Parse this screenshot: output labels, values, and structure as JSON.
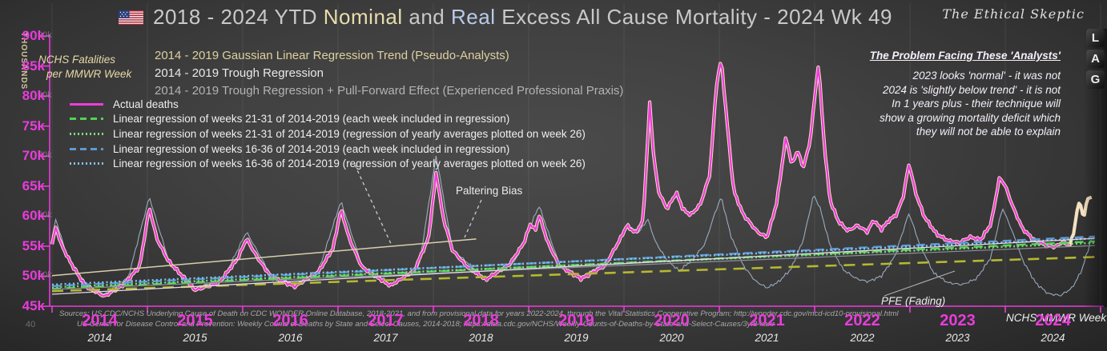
{
  "header": {
    "title_prefix": "2018 - 2024 YTD",
    "title_nominal": "Nominal",
    "title_and": "and",
    "title_real": "Real",
    "title_suffix": "Excess All Cause Mortality - 2024 Wk 49",
    "watermark": "The Ethical Skeptic"
  },
  "axis_left": {
    "unit_label": "THOUSANDS",
    "caption_line1": "NCHS Fatalities",
    "caption_line2": "per MMWR Week",
    "tick_labels": [
      "90k",
      "85k",
      "80k",
      "75k",
      "70k",
      "65k",
      "60k",
      "55k",
      "50k",
      "45k"
    ],
    "tick_values": [
      90,
      85,
      80,
      75,
      70,
      65,
      60,
      55,
      50,
      45
    ],
    "ghost_labels": [
      "90k",
      "80k",
      "70k",
      "60k",
      "50k",
      "40"
    ],
    "ghost_values": [
      90,
      80,
      70,
      60,
      50,
      40
    ]
  },
  "axis_bottom": {
    "years_primary": [
      "2014",
      "2015",
      "2016",
      "2017",
      "2018",
      "2019",
      "2020",
      "2021",
      "2022",
      "2023",
      "2024"
    ],
    "years_secondary": [
      "2014",
      "2015",
      "2016",
      "2017",
      "2018",
      "2019",
      "2020",
      "2021",
      "2022",
      "2023",
      "2024"
    ],
    "axis_caption": "NCHS MMWR Week"
  },
  "legend_top": [
    {
      "label": "2014 - 2019 Gaussian Linear Regression Trend (Pseudo-Analysts)",
      "color": "#ddd0a0"
    },
    {
      "label": "2014 - 2019 Trough Regression",
      "color": "#e9e9e9"
    },
    {
      "label": "2014 - 2019 Trough Regression + Pull-Forward Effect (Experienced Professional Praxis)",
      "color": "#b3b3b3"
    }
  ],
  "legend_main": [
    {
      "label": "Actual deaths",
      "style": "solid",
      "color": "#ee3ddb",
      "width": 3
    },
    {
      "label": "Linear regression of weeks 21-31 of 2014-2019 (each week included in regression)",
      "style": "dashed",
      "color": "#52d452",
      "width": 3
    },
    {
      "label": "Linear regression of weeks 21-31 of 2014-2019 (regression of yearly averages plotted on week 26)",
      "style": "dotted",
      "color": "#7adf7a",
      "width": 3
    },
    {
      "label": "Linear regression of weeks 16-36 of 2014-2019 (each week included in regression)",
      "style": "dashed",
      "color": "#5b9bd5",
      "width": 3
    },
    {
      "label": "Linear regression of weeks 16-36 of 2014-2019 (regression of yearly averages plotted on week 26)",
      "style": "dotted",
      "color": "#85c0f0",
      "width": 3
    }
  ],
  "annotations": {
    "paltering": "Paltering Bias",
    "pfe": "PFE (Fading)",
    "lag_letters": [
      "L",
      "A",
      "G"
    ],
    "problem_title": "The Problem Facing These 'Analysts'",
    "problem_lines": [
      "2023  looks 'normal' - it was not",
      "2024  is 'slightly below trend' - it is not",
      "In 1 years plus - their technique will",
      "show a growing mortality deficit which",
      "they will not be able to explain"
    ]
  },
  "sources": {
    "line1": "Sources:  US CDC/NCHS Underlying Cause of Death on CDC WONDER Online Database, 2018-2021, and from provisional data for years 2022-2024, through the Vital Statistics Cooperative Program; http://wonder.cdc.gov/mcd-icd10-provisional.html",
    "line2": "US Center for Disease Control and Prevention: Weekly  Counts of Deaths by State and Select Causes, 2014-2018; https://data.cdc.gov/NCHS/Weekly-Counts-of-Deaths-by-State-and-Select-Causes/3yf8-kanr"
  },
  "chart_data": {
    "type": "line",
    "title": "2018 - 2024 YTD Nominal and Real Excess All Cause Mortality - 2024 Wk 49",
    "ylabel": "NCHS Fatalities per MMWR Week (thousands)",
    "xlabel": "NCHS MMWR Week",
    "x_domain": [
      2014.0,
      2024.94
    ],
    "ylim": [
      45,
      90
    ],
    "grid": "vertical-year-lines",
    "series": [
      {
        "name": "actual_deaths_nominal",
        "color": "#ee3ddb",
        "halo_color": "#f3e1c0",
        "magenta_ends_at": 2024.68,
        "anchors": [
          [
            2014.0,
            55.5
          ],
          [
            2014.04,
            58.3
          ],
          [
            2014.1,
            55.3
          ],
          [
            2014.2,
            52.3
          ],
          [
            2014.35,
            48.6
          ],
          [
            2014.55,
            46.8
          ],
          [
            2014.75,
            48.6
          ],
          [
            2014.92,
            51.5
          ],
          [
            2015.02,
            61.3
          ],
          [
            2015.1,
            56.0
          ],
          [
            2015.22,
            52.3
          ],
          [
            2015.5,
            47.6
          ],
          [
            2015.75,
            49.0
          ],
          [
            2015.95,
            53.2
          ],
          [
            2016.04,
            56.5
          ],
          [
            2016.15,
            53.4
          ],
          [
            2016.3,
            50.0
          ],
          [
            2016.55,
            48.2
          ],
          [
            2016.8,
            50.6
          ],
          [
            2016.95,
            54.5
          ],
          [
            2017.03,
            61.0
          ],
          [
            2017.12,
            56.0
          ],
          [
            2017.25,
            51.5
          ],
          [
            2017.55,
            48.6
          ],
          [
            2017.8,
            51.2
          ],
          [
            2017.95,
            56.5
          ],
          [
            2018.03,
            67.5
          ],
          [
            2018.1,
            60.0
          ],
          [
            2018.2,
            54.3
          ],
          [
            2018.35,
            51.5
          ],
          [
            2018.55,
            49.2
          ],
          [
            2018.8,
            51.8
          ],
          [
            2018.95,
            55.5
          ],
          [
            2019.02,
            58.8
          ],
          [
            2019.07,
            57.6
          ],
          [
            2019.11,
            60.3
          ],
          [
            2019.2,
            55.8
          ],
          [
            2019.32,
            52.0
          ],
          [
            2019.55,
            49.8
          ],
          [
            2019.8,
            51.8
          ],
          [
            2019.95,
            55.8
          ],
          [
            2020.03,
            58.3
          ],
          [
            2020.12,
            57.0
          ],
          [
            2020.2,
            59.0
          ],
          [
            2020.24,
            70.0
          ],
          [
            2020.27,
            78.6
          ],
          [
            2020.31,
            70.0
          ],
          [
            2020.36,
            64.0
          ],
          [
            2020.45,
            61.0
          ],
          [
            2020.55,
            63.8
          ],
          [
            2020.62,
            61.0
          ],
          [
            2020.7,
            60.2
          ],
          [
            2020.8,
            62.0
          ],
          [
            2020.9,
            67.0
          ],
          [
            2020.97,
            82.0
          ],
          [
            2021.02,
            86.4
          ],
          [
            2021.08,
            76.0
          ],
          [
            2021.15,
            64.5
          ],
          [
            2021.25,
            60.5
          ],
          [
            2021.4,
            57.5
          ],
          [
            2021.5,
            56.5
          ],
          [
            2021.6,
            62.0
          ],
          [
            2021.7,
            73.2
          ],
          [
            2021.76,
            68.3
          ],
          [
            2021.82,
            70.8
          ],
          [
            2021.88,
            67.8
          ],
          [
            2021.95,
            72.0
          ],
          [
            2022.04,
            85.2
          ],
          [
            2022.1,
            72.0
          ],
          [
            2022.16,
            62.5
          ],
          [
            2022.25,
            59.0
          ],
          [
            2022.35,
            57.5
          ],
          [
            2022.45,
            58.5
          ],
          [
            2022.55,
            57.5
          ],
          [
            2022.62,
            59.5
          ],
          [
            2022.7,
            58.0
          ],
          [
            2022.78,
            59.5
          ],
          [
            2022.86,
            60.5
          ],
          [
            2022.93,
            63.5
          ],
          [
            2022.99,
            69.0
          ],
          [
            2023.06,
            64.0
          ],
          [
            2023.15,
            60.0
          ],
          [
            2023.28,
            57.0
          ],
          [
            2023.4,
            55.8
          ],
          [
            2023.52,
            55.4
          ],
          [
            2023.63,
            56.3
          ],
          [
            2023.74,
            55.8
          ],
          [
            2023.85,
            58.5
          ],
          [
            2023.94,
            66.3
          ],
          [
            2024.0,
            65.0
          ],
          [
            2024.08,
            61.5
          ],
          [
            2024.18,
            58.0
          ],
          [
            2024.3,
            56.2
          ],
          [
            2024.42,
            55.4
          ],
          [
            2024.52,
            55.1
          ],
          [
            2024.6,
            55.9
          ],
          [
            2024.68,
            55.4
          ],
          [
            2024.72,
            57.6
          ],
          [
            2024.76,
            61.8
          ],
          [
            2024.79,
            62.3
          ],
          [
            2024.82,
            59.6
          ],
          [
            2024.87,
            63.4
          ],
          [
            2024.9,
            62.8
          ],
          [
            2024.92,
            64.3
          ]
        ]
      },
      {
        "name": "actual_deaths_real",
        "color": "#a9b9cf",
        "anchors": [
          [
            2014.0,
            56.6
          ],
          [
            2014.04,
            59.6
          ],
          [
            2014.15,
            53.8
          ],
          [
            2014.35,
            49.0
          ],
          [
            2014.55,
            47.1
          ],
          [
            2014.8,
            49.8
          ],
          [
            2015.02,
            63.0
          ],
          [
            2015.22,
            52.6
          ],
          [
            2015.5,
            47.9
          ],
          [
            2015.8,
            49.8
          ],
          [
            2016.04,
            57.6
          ],
          [
            2016.3,
            50.2
          ],
          [
            2016.55,
            48.4
          ],
          [
            2016.8,
            50.9
          ],
          [
            2017.03,
            62.3
          ],
          [
            2017.25,
            51.8
          ],
          [
            2017.55,
            48.8
          ],
          [
            2017.85,
            51.8
          ],
          [
            2018.03,
            70.2
          ],
          [
            2018.2,
            54.4
          ],
          [
            2018.55,
            49.3
          ],
          [
            2018.85,
            52.3
          ],
          [
            2019.11,
            61.8
          ],
          [
            2019.32,
            52.2
          ],
          [
            2019.55,
            50.0
          ],
          [
            2019.85,
            52.8
          ],
          [
            2020.03,
            58.6
          ],
          [
            2020.15,
            57.0
          ],
          [
            2020.25,
            59.3
          ],
          [
            2020.33,
            55.5
          ],
          [
            2020.45,
            52.5
          ],
          [
            2020.58,
            50.8
          ],
          [
            2020.72,
            52.8
          ],
          [
            2020.85,
            55.5
          ],
          [
            2020.95,
            60.5
          ],
          [
            2021.02,
            63.4
          ],
          [
            2021.12,
            57.0
          ],
          [
            2021.25,
            52.0
          ],
          [
            2021.38,
            49.3
          ],
          [
            2021.5,
            48.1
          ],
          [
            2021.62,
            49.0
          ],
          [
            2021.75,
            51.0
          ],
          [
            2021.88,
            55.8
          ],
          [
            2021.99,
            63.4
          ],
          [
            2022.06,
            61.0
          ],
          [
            2022.16,
            55.0
          ],
          [
            2022.3,
            51.0
          ],
          [
            2022.44,
            49.6
          ],
          [
            2022.56,
            49.2
          ],
          [
            2022.7,
            50.2
          ],
          [
            2022.84,
            53.5
          ],
          [
            2022.99,
            60.7
          ],
          [
            2023.1,
            55.5
          ],
          [
            2023.25,
            50.5
          ],
          [
            2023.4,
            48.8
          ],
          [
            2023.55,
            48.4
          ],
          [
            2023.7,
            49.4
          ],
          [
            2023.85,
            53.0
          ],
          [
            2023.97,
            61.3
          ],
          [
            2024.06,
            58.0
          ],
          [
            2024.18,
            52.8
          ],
          [
            2024.32,
            49.0
          ],
          [
            2024.45,
            47.3
          ],
          [
            2024.58,
            47.0
          ],
          [
            2024.7,
            48.2
          ],
          [
            2024.8,
            51.0
          ],
          [
            2024.87,
            54.5
          ],
          [
            2024.92,
            57.2
          ]
        ]
      }
    ],
    "regressions": [
      {
        "name": "yellow_dashed_regression",
        "color": "#b5b832",
        "dash": "14 9",
        "width": 2.6,
        "x": [
          2014.0,
          2024.94
        ],
        "v": [
          47.5,
          53.2
        ]
      },
      {
        "name": "green_dashed_wk21_31_each_week",
        "color": "#52d452",
        "dash": "11 7",
        "width": 2.5,
        "x": [
          2014.0,
          2024.94
        ],
        "v": [
          47.9,
          55.8
        ]
      },
      {
        "name": "green_dotted_wk21_31_yearly_avg",
        "color": "#7adf7a",
        "dash": "2 3.2",
        "width": 2.5,
        "x": [
          2014.0,
          2024.94
        ],
        "v": [
          48.15,
          55.55
        ]
      },
      {
        "name": "blue_dashed_wk16_36_each_week",
        "color": "#5b9bd5",
        "dash": "11 7",
        "width": 2.5,
        "x": [
          2014.0,
          2024.94
        ],
        "v": [
          48.35,
          56.6
        ]
      },
      {
        "name": "blue_dotted_wk16_36_yearly_avg",
        "color": "#85c0f0",
        "dash": "2 3.2",
        "width": 2.5,
        "x": [
          2014.0,
          2024.94
        ],
        "v": [
          48.6,
          56.3
        ]
      },
      {
        "name": "trough_regression_plus_pfe",
        "color": "#8f8f98",
        "dash": null,
        "width": 1.2,
        "x": [
          2014.0,
          2024.94
        ],
        "v": [
          47.8,
          55.1
        ]
      },
      {
        "name": "trough_regression",
        "color": "#e4dcee",
        "dash": null,
        "width": 1.3,
        "x": [
          2014.0,
          2024.94
        ],
        "v": [
          47.0,
          56.3
        ]
      },
      {
        "name": "gaussian_linear_regression_trend",
        "color": "#d8cfae",
        "dash": null,
        "width": 1.5,
        "x": [
          2014.0,
          2018.45
        ],
        "v": [
          50.1,
          56.2
        ]
      }
    ]
  }
}
